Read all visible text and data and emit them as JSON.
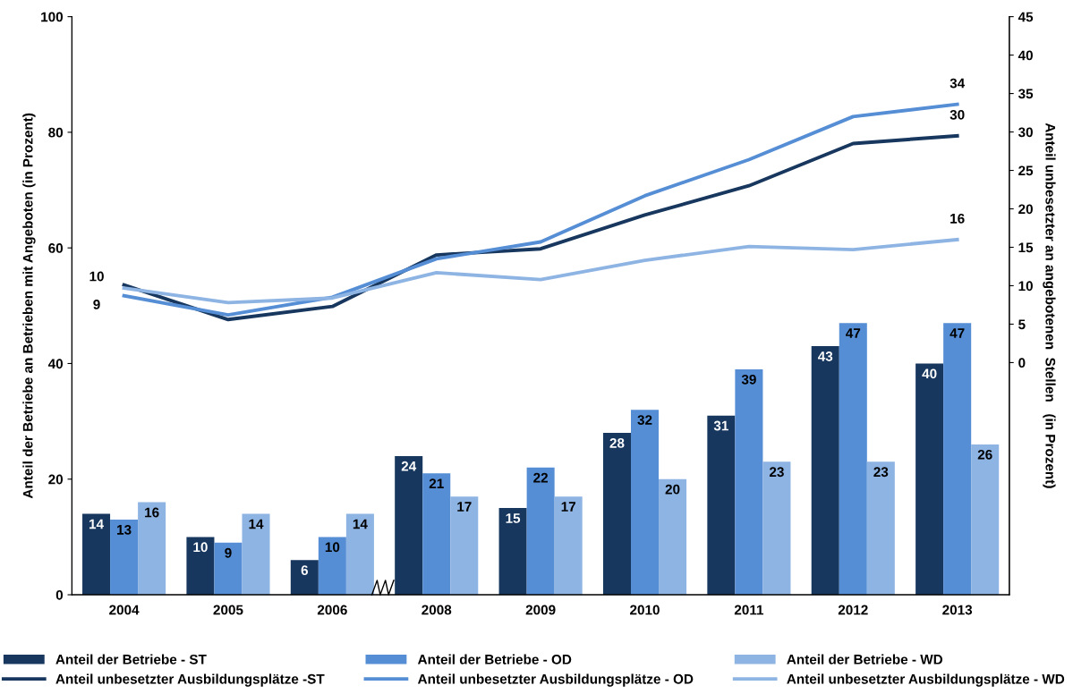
{
  "chart_data": {
    "type": "bar",
    "categories": [
      "2004",
      "2005",
      "2006",
      "2008",
      "2009",
      "2010",
      "2011",
      "2012",
      "2013"
    ],
    "ylabel": "Anteil der Betriebe an Betrieben mit Angeboten (in Prozent)",
    "y2label": "Anteil unbesetzter an angebotenen  Stellen   (in Prozent)",
    "ylim": [
      0,
      100
    ],
    "yticks": [
      0,
      20,
      40,
      60,
      80,
      100
    ],
    "y2lim": [
      -30.2,
      45
    ],
    "y2ticks": [
      0,
      5,
      10,
      15,
      20,
      25,
      30,
      35,
      40,
      45
    ],
    "grid": false,
    "legend": "bottom",
    "series": [
      {
        "name": "Anteil der Betriebe - ST",
        "color": "#17375e",
        "data_labels": true,
        "values": [
          14,
          10,
          6,
          24,
          15,
          28,
          31,
          43,
          40
        ]
      },
      {
        "name": "Anteil der Betriebe - OD",
        "color": "#558ed5",
        "data_labels": true,
        "values": [
          13,
          9,
          10,
          21,
          22,
          32,
          39,
          47,
          47
        ]
      },
      {
        "name": "Anteil der Betriebe - WD",
        "color": "#8eb4e3",
        "data_labels": true,
        "values": [
          16,
          14,
          14,
          17,
          17,
          20,
          23,
          23,
          26
        ]
      },
      {
        "name": "Anteil unbesetzter Ausbildungsplätze -ST",
        "type": "line",
        "axis": "y2",
        "color": "#17375e",
        "marker": "none",
        "values": [
          10.1,
          5.6,
          7.3,
          14.0,
          14.8,
          19.2,
          23.0,
          28.5,
          29.5
        ],
        "value_labels": [
          "10",
          null,
          null,
          null,
          null,
          null,
          null,
          null,
          "30"
        ]
      },
      {
        "name": "Anteil unbesetzter Ausbildungsplätze - OD",
        "type": "line",
        "axis": "y2",
        "color": "#558ed5",
        "marker": "none",
        "values": [
          8.7,
          6.2,
          8.5,
          13.5,
          15.7,
          21.7,
          26.4,
          32.0,
          33.6
        ],
        "value_labels": [
          "9",
          null,
          null,
          null,
          null,
          null,
          null,
          null,
          "34"
        ]
      },
      {
        "name": "Anteil unbesetzter Ausbildungsplätze - WD",
        "type": "line",
        "axis": "y2",
        "color": "#8eb4e3",
        "marker": "none",
        "values": [
          9.7,
          7.8,
          8.4,
          11.7,
          10.8,
          13.3,
          15.1,
          14.7,
          16.0
        ],
        "value_labels": [
          null,
          null,
          null,
          null,
          null,
          null,
          null,
          null,
          "16"
        ]
      }
    ]
  }
}
